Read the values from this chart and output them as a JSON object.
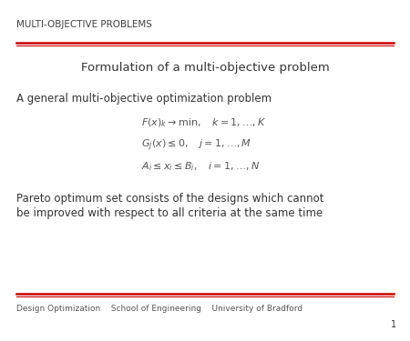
{
  "bg_color": "#ffffff",
  "header_text": "MULTI-OBJECTIVE PROBLEMS",
  "header_color": "#404040",
  "header_fontsize": 7.5,
  "header_line_color": "#cc0000",
  "title_text": "Formulation of a multi-objective problem",
  "title_fontsize": 9.5,
  "title_color": "#333333",
  "body_text1": "A general multi-objective optimization problem",
  "body_fontsize": 8.5,
  "body_color": "#333333",
  "eq1": "$F(x)_k \\rightarrow \\mathrm{min,} \\quad k=1,\\ldots,K$",
  "eq2": "$G_j(x) \\leq 0, \\quad j=1,\\ldots,M$",
  "eq3": "$A_i \\leq x_i \\leq B_i, \\quad i=1,\\ldots,N$",
  "eq_fontsize": 8.0,
  "eq_color": "#555555",
  "pareto_line1": "Pareto optimum set consists of the designs which cannot",
  "pareto_line2": "be improved with respect to all criteria at the same time",
  "pareto_fontsize": 8.5,
  "pareto_color": "#333333",
  "footer_text": "Design Optimization    School of Engineering    University of Bradford",
  "footer_fontsize": 6.5,
  "footer_color": "#555555",
  "footer_line_color": "#cc0000",
  "page_number": "1",
  "page_number_fontsize": 7.0,
  "page_number_color": "#333333"
}
